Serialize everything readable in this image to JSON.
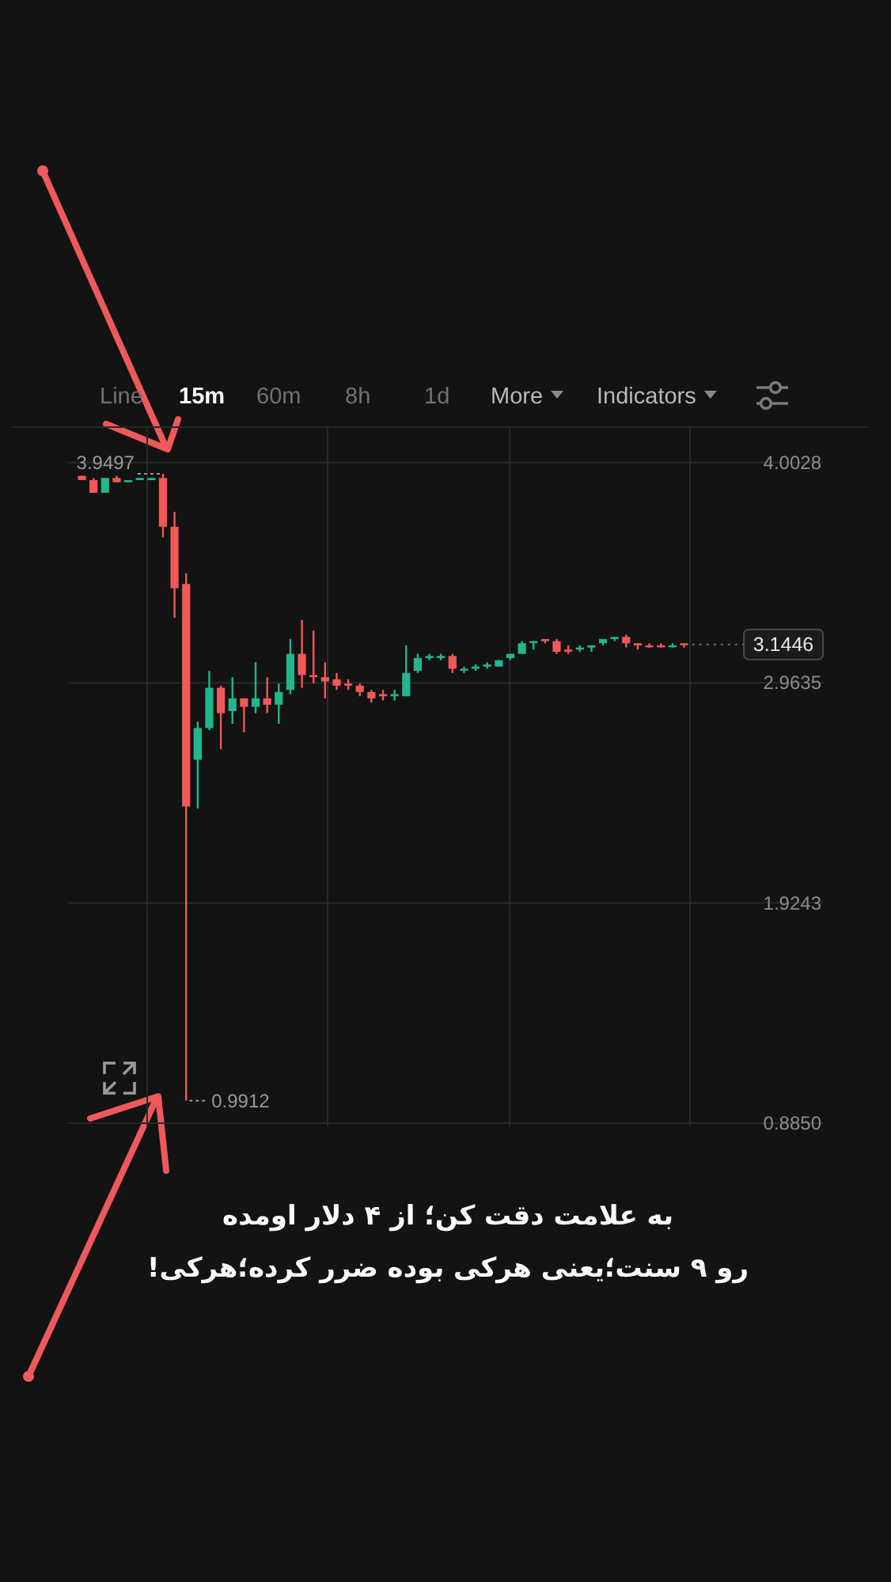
{
  "chart_data": {
    "type": "candlestick",
    "title": "به علامت دقت کن؛ از ۴ دلار اومده\nرو ۹ سنت؛یعنی هرکی بوده ضرر کرده؛هرکی!",
    "annotations": [
      "Line",
      "15m",
      "60m",
      "8h",
      "1d",
      "More",
      "Indicators",
      {
        "text": "3.9497",
        "y": 3.9497
      },
      "0.9912"
    ],
    "categories": [
      null,
      null,
      null,
      null,
      null,
      null,
      null,
      null,
      null,
      null,
      null,
      null,
      null,
      null,
      null,
      null,
      null,
      null,
      null,
      null,
      null,
      null,
      null,
      null,
      null,
      null,
      null,
      null,
      null,
      null,
      null,
      null,
      null,
      null,
      null,
      null,
      null,
      null,
      null,
      null,
      null,
      null,
      null,
      null,
      null,
      null,
      null,
      null,
      null,
      null,
      null,
      null,
      null
    ],
    "ohlc": [
      [
        3.94,
        3.94,
        3.92,
        3.92
      ],
      [
        3.92,
        3.93,
        3.86,
        3.86
      ],
      [
        3.86,
        3.93,
        3.86,
        3.93
      ],
      [
        3.93,
        3.94,
        3.91,
        3.91
      ],
      [
        3.91,
        3.92,
        3.91,
        3.92
      ],
      [
        3.92,
        3.93,
        3.92,
        3.93
      ],
      [
        3.92,
        3.93,
        3.92,
        3.93
      ],
      [
        3.93,
        3.9497,
        3.65,
        3.7
      ],
      [
        3.7,
        3.77,
        3.27,
        3.41
      ],
      [
        3.43,
        3.48,
        0.9912,
        2.38
      ],
      [
        2.6,
        2.78,
        2.37,
        2.75
      ],
      [
        2.75,
        3.02,
        2.74,
        2.94
      ],
      [
        2.94,
        2.95,
        2.65,
        2.82
      ],
      [
        2.83,
        2.99,
        2.77,
        2.89
      ],
      [
        2.89,
        2.89,
        2.73,
        2.85
      ],
      [
        2.85,
        3.06,
        2.82,
        2.89
      ],
      [
        2.89,
        2.99,
        2.82,
        2.86
      ],
      [
        2.86,
        2.96,
        2.77,
        2.92
      ],
      [
        2.93,
        3.17,
        2.91,
        3.1
      ],
      [
        3.1,
        3.26,
        2.94,
        3.0
      ],
      [
        3.0,
        3.21,
        2.96,
        2.99
      ],
      [
        2.99,
        3.06,
        2.89,
        2.97
      ],
      [
        2.98,
        3.01,
        2.93,
        2.95
      ],
      [
        2.96,
        2.98,
        2.93,
        2.95
      ],
      [
        2.95,
        2.96,
        2.9,
        2.92
      ],
      [
        2.92,
        2.93,
        2.87,
        2.89
      ],
      [
        2.91,
        2.93,
        2.88,
        2.9
      ],
      [
        2.9,
        2.93,
        2.88,
        2.91
      ],
      [
        2.9,
        3.14,
        2.9,
        3.01
      ],
      [
        3.02,
        3.1,
        3.01,
        3.08
      ],
      [
        3.08,
        3.1,
        3.07,
        3.09
      ],
      [
        3.08,
        3.1,
        3.07,
        3.09
      ],
      [
        3.09,
        3.1,
        3.01,
        3.03
      ],
      [
        3.03,
        3.04,
        3.01,
        3.03
      ],
      [
        3.03,
        3.05,
        3.02,
        3.04
      ],
      [
        3.04,
        3.06,
        3.03,
        3.05
      ],
      [
        3.04,
        3.07,
        3.04,
        3.07
      ],
      [
        3.08,
        3.1,
        3.07,
        3.1
      ],
      [
        3.1,
        3.16,
        3.1,
        3.15
      ],
      [
        3.16,
        3.16,
        3.12,
        3.16
      ],
      [
        3.17,
        3.17,
        3.15,
        3.16
      ],
      [
        3.16,
        3.17,
        3.1,
        3.11
      ],
      [
        3.12,
        3.14,
        3.1,
        3.11
      ],
      [
        3.12,
        3.14,
        3.11,
        3.13
      ],
      [
        3.13,
        3.14,
        3.11,
        3.14
      ],
      [
        3.15,
        3.17,
        3.14,
        3.17
      ],
      [
        3.17,
        3.18,
        3.16,
        3.18
      ],
      [
        3.18,
        3.19,
        3.13,
        3.15
      ],
      [
        3.15,
        3.15,
        3.12,
        3.14
      ],
      [
        3.14,
        3.15,
        3.13,
        3.14
      ],
      [
        3.14,
        3.15,
        3.13,
        3.14
      ],
      [
        3.14,
        3.15,
        3.13,
        3.14
      ],
      [
        3.15,
        3.15,
        3.13,
        3.1446
      ]
    ],
    "colors": [
      "#f0585a",
      "#f0585a",
      "#21b68c",
      "#f0585a",
      "#21b68c",
      "#21b68c",
      "#21b68c",
      "#f0585a",
      "#f0585a",
      "#f0585a",
      "#21b68c",
      "#21b68c",
      "#f0585a",
      "#21b68c",
      "#f0585a",
      "#21b68c",
      "#f0585a",
      "#21b68c",
      "#21b68c",
      "#f0585a",
      "#f0585a",
      "#f0585a",
      "#f0585a",
      "#f0585a",
      "#f0585a",
      "#f0585a",
      "#f0585a",
      "#21b68c",
      "#21b68c",
      "#21b68c",
      "#21b68c",
      "#21b68c",
      "#f0585a",
      "#21b68c",
      "#21b68c",
      "#21b68c",
      "#21b68c",
      "#21b68c",
      "#21b68c",
      "#21b68c",
      "#f0585a",
      "#f0585a",
      "#f0585a",
      "#21b68c",
      "#21b68c",
      "#21b68c",
      "#21b68c",
      "#f0585a",
      "#f0585a",
      "#f0585a",
      "#f0585a",
      "#21b68c",
      "#f0585a"
    ],
    "ylim": [
      0.87,
      4.17
    ],
    "yticks": [
      4.0028,
      2.9635,
      1.9243,
      {
        "value": 0.885,
        "label": "0.8850"
      }
    ],
    "grid": true,
    "tick_labels": "y",
    "ref_lines": [
      {
        "axis": "y",
        "value": 3.1446,
        "label": "3.1446",
        "line_style": "dotted"
      }
    ]
  }
}
